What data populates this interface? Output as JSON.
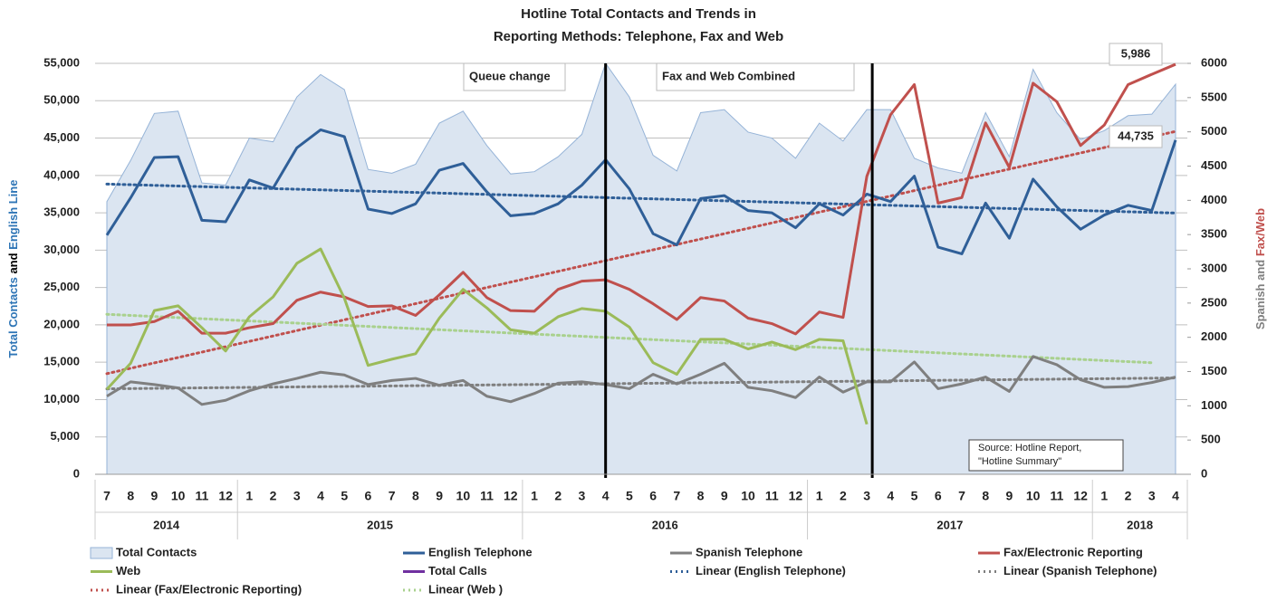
{
  "chart_data": {
    "type": "combo",
    "title": [
      "Hotline Total Contacts and Trends in",
      "Reporting Methods: Telephone, Fax and Web"
    ],
    "y_axis_label": [
      {
        "text": "Total Contacts",
        "color": "#2e75b6"
      },
      {
        "text": " and ",
        "color": "#000000"
      },
      {
        "text": "English Line",
        "color": "#2e75b6"
      }
    ],
    "y2_axis_label": [
      {
        "text": "Spanish and ",
        "color": "#7f7f7f"
      },
      {
        "text": "Fax/Web",
        "color": "#c0504d"
      }
    ],
    "categories": [
      "7",
      "8",
      "9",
      "10",
      "11",
      "12",
      "1",
      "2",
      "3",
      "4",
      "5",
      "6",
      "7",
      "8",
      "9",
      "10",
      "11",
      "12",
      "1",
      "2",
      "3",
      "4",
      "5",
      "6",
      "7",
      "8",
      "9",
      "10",
      "11",
      "12",
      "1",
      "2",
      "3",
      "4",
      "5",
      "6",
      "7",
      "8",
      "9",
      "10",
      "11",
      "12",
      "1",
      "2",
      "3",
      "4"
    ],
    "year_groups": [
      {
        "label": "2014",
        "months": 6
      },
      {
        "label": "2015",
        "months": 12
      },
      {
        "label": "2016",
        "months": 12
      },
      {
        "label": "2017",
        "months": 12
      },
      {
        "label": "2018",
        "months": 4
      }
    ],
    "ylim": [
      0,
      55000
    ],
    "yticks": [
      0,
      {
        "value": 5000,
        "label": "5,000"
      },
      {
        "value": 10000,
        "label": "10,000"
      },
      {
        "value": 15000,
        "label": "15,000"
      },
      {
        "value": 20000,
        "label": "20,000"
      },
      {
        "value": 25000,
        "label": "25,000"
      },
      {
        "value": 30000,
        "label": "30,000"
      },
      {
        "value": 35000,
        "label": "35,000"
      },
      {
        "value": 40000,
        "label": "40,000"
      },
      {
        "value": 45000,
        "label": "45,000"
      },
      {
        "value": 50000,
        "label": "50,000"
      },
      {
        "value": 55000,
        "label": "55,000"
      }
    ],
    "y2lim": [
      0,
      6000
    ],
    "y2ticks": [
      0,
      500,
      1000,
      1500,
      2000,
      2500,
      3000,
      3500,
      4000,
      4500,
      5000,
      5500,
      6000
    ],
    "grid": true,
    "series": [
      {
        "name": "Total Contacts",
        "kind": "area",
        "color": "#dbe5f1",
        "values": [
          36500,
          42000,
          48300,
          48600,
          39000,
          38700,
          45000,
          44500,
          50500,
          53500,
          51500,
          40800,
          40300,
          41500,
          47000,
          48600,
          44000,
          40200,
          40500,
          42500,
          45500,
          55000,
          50500,
          42700,
          40600,
          48400,
          48800,
          45800,
          45000,
          42300,
          47000,
          44600,
          48800,
          48800,
          42300,
          41000,
          40300,
          48400,
          42500,
          54200,
          48400,
          44800,
          46000,
          48000,
          48200,
          52200
        ]
      },
      {
        "name": "English Telephone",
        "kind": "line",
        "color": "#2f5f98",
        "trendline": "Linear (English Telephone)",
        "values": [
          32000,
          37000,
          42400,
          42500,
          34000,
          33800,
          39400,
          38300,
          43700,
          46100,
          45200,
          35500,
          34900,
          36200,
          40700,
          41600,
          37800,
          34600,
          34900,
          36200,
          38700,
          42100,
          38200,
          32200,
          30700,
          36900,
          37300,
          35300,
          35000,
          33000,
          36200,
          34700,
          37500,
          36500,
          39900,
          30400,
          29500,
          36300,
          31600,
          39500,
          35800,
          32800,
          34700,
          36000,
          35300,
          44735
        ],
        "value_labels": [
          null,
          null,
          null,
          null,
          null,
          null,
          null,
          null,
          null,
          null,
          null,
          null,
          null,
          null,
          null,
          null,
          null,
          null,
          null,
          null,
          null,
          null,
          null,
          null,
          null,
          null,
          null,
          null,
          null,
          null,
          null,
          null,
          null,
          null,
          null,
          null,
          null,
          null,
          null,
          null,
          null,
          null,
          null,
          null,
          null,
          "44,735"
        ]
      },
      {
        "name": "Spanish Telephone",
        "kind": "line",
        "axis": "y2",
        "color": "#7f7f7f",
        "trendline": "Linear (Spanish Telephone)",
        "values": [
          1140,
          1350,
          1310,
          1260,
          1020,
          1080,
          1220,
          1320,
          1400,
          1490,
          1450,
          1310,
          1370,
          1400,
          1300,
          1370,
          1140,
          1060,
          1180,
          1330,
          1350,
          1310,
          1250,
          1460,
          1320,
          1460,
          1620,
          1270,
          1220,
          1120,
          1420,
          1200,
          1350,
          1350,
          1640,
          1250,
          1320,
          1420,
          1210,
          1720,
          1600,
          1380,
          1270,
          1280,
          1340,
          1420
        ]
      },
      {
        "name": "Fax/Electronic Reporting",
        "kind": "line",
        "axis": "y2",
        "color": "#c0504d",
        "trendline": "Linear (Fax/Electronic Reporting)",
        "values": [
          2180,
          2180,
          2230,
          2380,
          2060,
          2060,
          2140,
          2200,
          2540,
          2660,
          2590,
          2450,
          2460,
          2320,
          2620,
          2950,
          2580,
          2390,
          2380,
          2700,
          2820,
          2840,
          2700,
          2490,
          2260,
          2580,
          2530,
          2280,
          2200,
          2050,
          2370,
          2290,
          4350,
          5250,
          5690,
          3960,
          4040,
          5130,
          4480,
          5710,
          5440,
          4800,
          5100,
          5690,
          5840,
          5986
        ],
        "value_labels": [
          null,
          null,
          null,
          null,
          null,
          null,
          null,
          null,
          null,
          null,
          null,
          null,
          null,
          null,
          null,
          null,
          null,
          null,
          null,
          null,
          null,
          null,
          null,
          null,
          null,
          null,
          null,
          null,
          null,
          null,
          null,
          null,
          null,
          null,
          null,
          null,
          null,
          null,
          null,
          null,
          null,
          null,
          null,
          null,
          null,
          "5,986"
        ]
      },
      {
        "name": "Web",
        "kind": "line",
        "axis": "y2",
        "color": "#9bbb59",
        "trendline": "Linear (Web )",
        "values": [
          1240,
          1620,
          2390,
          2460,
          2140,
          1800,
          2300,
          2590,
          3080,
          3290,
          2570,
          1590,
          1680,
          1760,
          2280,
          2700,
          2430,
          2110,
          2060,
          2300,
          2420,
          2380,
          2150,
          1630,
          1460,
          1970,
          1970,
          1830,
          1930,
          1820,
          1970,
          1950,
          730,
          null,
          null,
          null,
          null,
          null,
          null,
          null,
          null,
          null,
          null,
          null,
          null,
          null
        ]
      },
      {
        "name": "Total Calls",
        "kind": "line",
        "color": "#7030a0",
        "values": [
          null,
          null,
          null,
          null,
          null,
          null,
          null,
          null,
          null,
          null,
          null,
          null,
          null,
          null,
          null,
          null,
          null,
          null,
          null,
          null,
          null,
          null,
          null,
          null,
          null,
          null,
          null,
          null,
          null,
          null,
          null,
          null,
          null,
          null,
          null,
          null,
          null,
          null,
          null,
          null,
          null,
          null,
          null,
          null,
          null,
          null
        ]
      }
    ],
    "annotations": [
      {
        "text": "Queue change",
        "at": 21
      },
      {
        "text": "Fax and Web Combined",
        "at": 32
      }
    ],
    "source": [
      "Source:  Hotline Report,",
      "\"Hotline Summary\""
    ]
  }
}
